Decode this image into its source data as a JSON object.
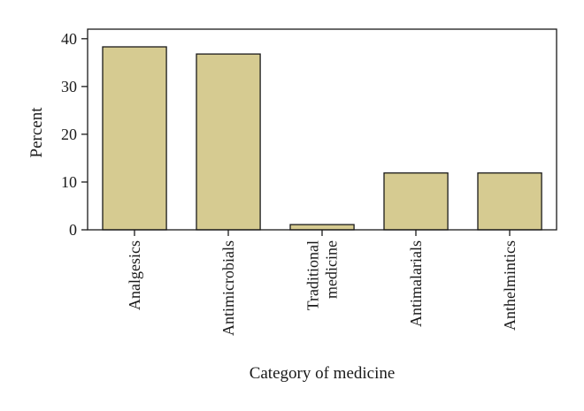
{
  "chart_data": {
    "type": "bar",
    "categories": [
      [
        "Analgesics"
      ],
      [
        "Antimicrobials"
      ],
      [
        "Traditional",
        "medicine"
      ],
      [
        "Antimalarials"
      ],
      [
        "Anthelmintics"
      ]
    ],
    "values": [
      38.3,
      36.8,
      1.1,
      11.9,
      11.9
    ],
    "xlabel": "Category of medicine",
    "ylabel": "Percent",
    "ylim": [
      0,
      42
    ],
    "yticks": [
      0,
      10,
      20,
      30,
      40
    ],
    "grid": false,
    "legend": "none",
    "bar_color": "#d6cb91",
    "bar_edge_color": "#1a1a1a"
  }
}
